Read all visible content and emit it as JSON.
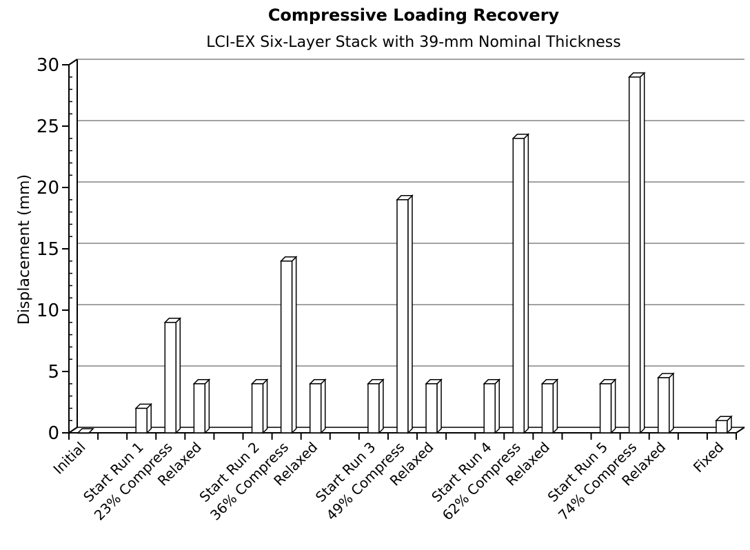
{
  "chart_data": {
    "type": "bar",
    "title": "Compressive Loading Recovery",
    "subtitle": "LCI-EX Six-Layer Stack with 39-mm Nominal Thickness",
    "ylabel": "Displacement (mm)",
    "xlabel": "",
    "ylim": [
      0,
      30
    ],
    "yticks": [
      0,
      5,
      10,
      15,
      20,
      25,
      30
    ],
    "grid": true,
    "categories": [
      [
        "Initial"
      ],
      [
        "Start Run 1"
      ],
      [
        "23% Compress"
      ],
      [
        "Relaxed"
      ],
      [
        "Start Run 2"
      ],
      [
        "36% Compress"
      ],
      [
        "Relaxed"
      ],
      [
        "Start Run 3"
      ],
      [
        "49% Compress"
      ],
      [
        "Relaxed"
      ],
      [
        "Start Run 4"
      ],
      [
        "62% Compress"
      ],
      [
        "Relaxed"
      ],
      [
        "Start Run 5"
      ],
      [
        "74% Compress"
      ],
      [
        "Relaxed"
      ],
      [
        "Fixed"
      ]
    ],
    "category_labels": [
      "Initial",
      "Start Run 1",
      "23% Compress",
      "Relaxed",
      "Start Run 2",
      "36% Compress",
      "Relaxed",
      "Start Run 3",
      "49% Compress",
      "Relaxed",
      "Start Run 4",
      "62% Compress",
      "Relaxed",
      "Start Run 5",
      "74% Compress",
      "Relaxed",
      "Fixed"
    ],
    "bars": [
      {
        "slot": 0,
        "value": 0
      },
      {
        "slot": 2,
        "value": 2
      },
      {
        "slot": 3,
        "value": 9
      },
      {
        "slot": 4,
        "value": 4
      },
      {
        "slot": 6,
        "value": 4
      },
      {
        "slot": 7,
        "value": 14
      },
      {
        "slot": 8,
        "value": 4
      },
      {
        "slot": 10,
        "value": 4
      },
      {
        "slot": 11,
        "value": 19
      },
      {
        "slot": 12,
        "value": 4
      },
      {
        "slot": 14,
        "value": 4
      },
      {
        "slot": 15,
        "value": 24
      },
      {
        "slot": 16,
        "value": 4
      },
      {
        "slot": 18,
        "value": 4
      },
      {
        "slot": 19,
        "value": 29
      },
      {
        "slot": 20,
        "value": 4.5
      },
      {
        "slot": 22,
        "value": 1
      }
    ],
    "slots": 23,
    "style": "3d-white-columns"
  }
}
